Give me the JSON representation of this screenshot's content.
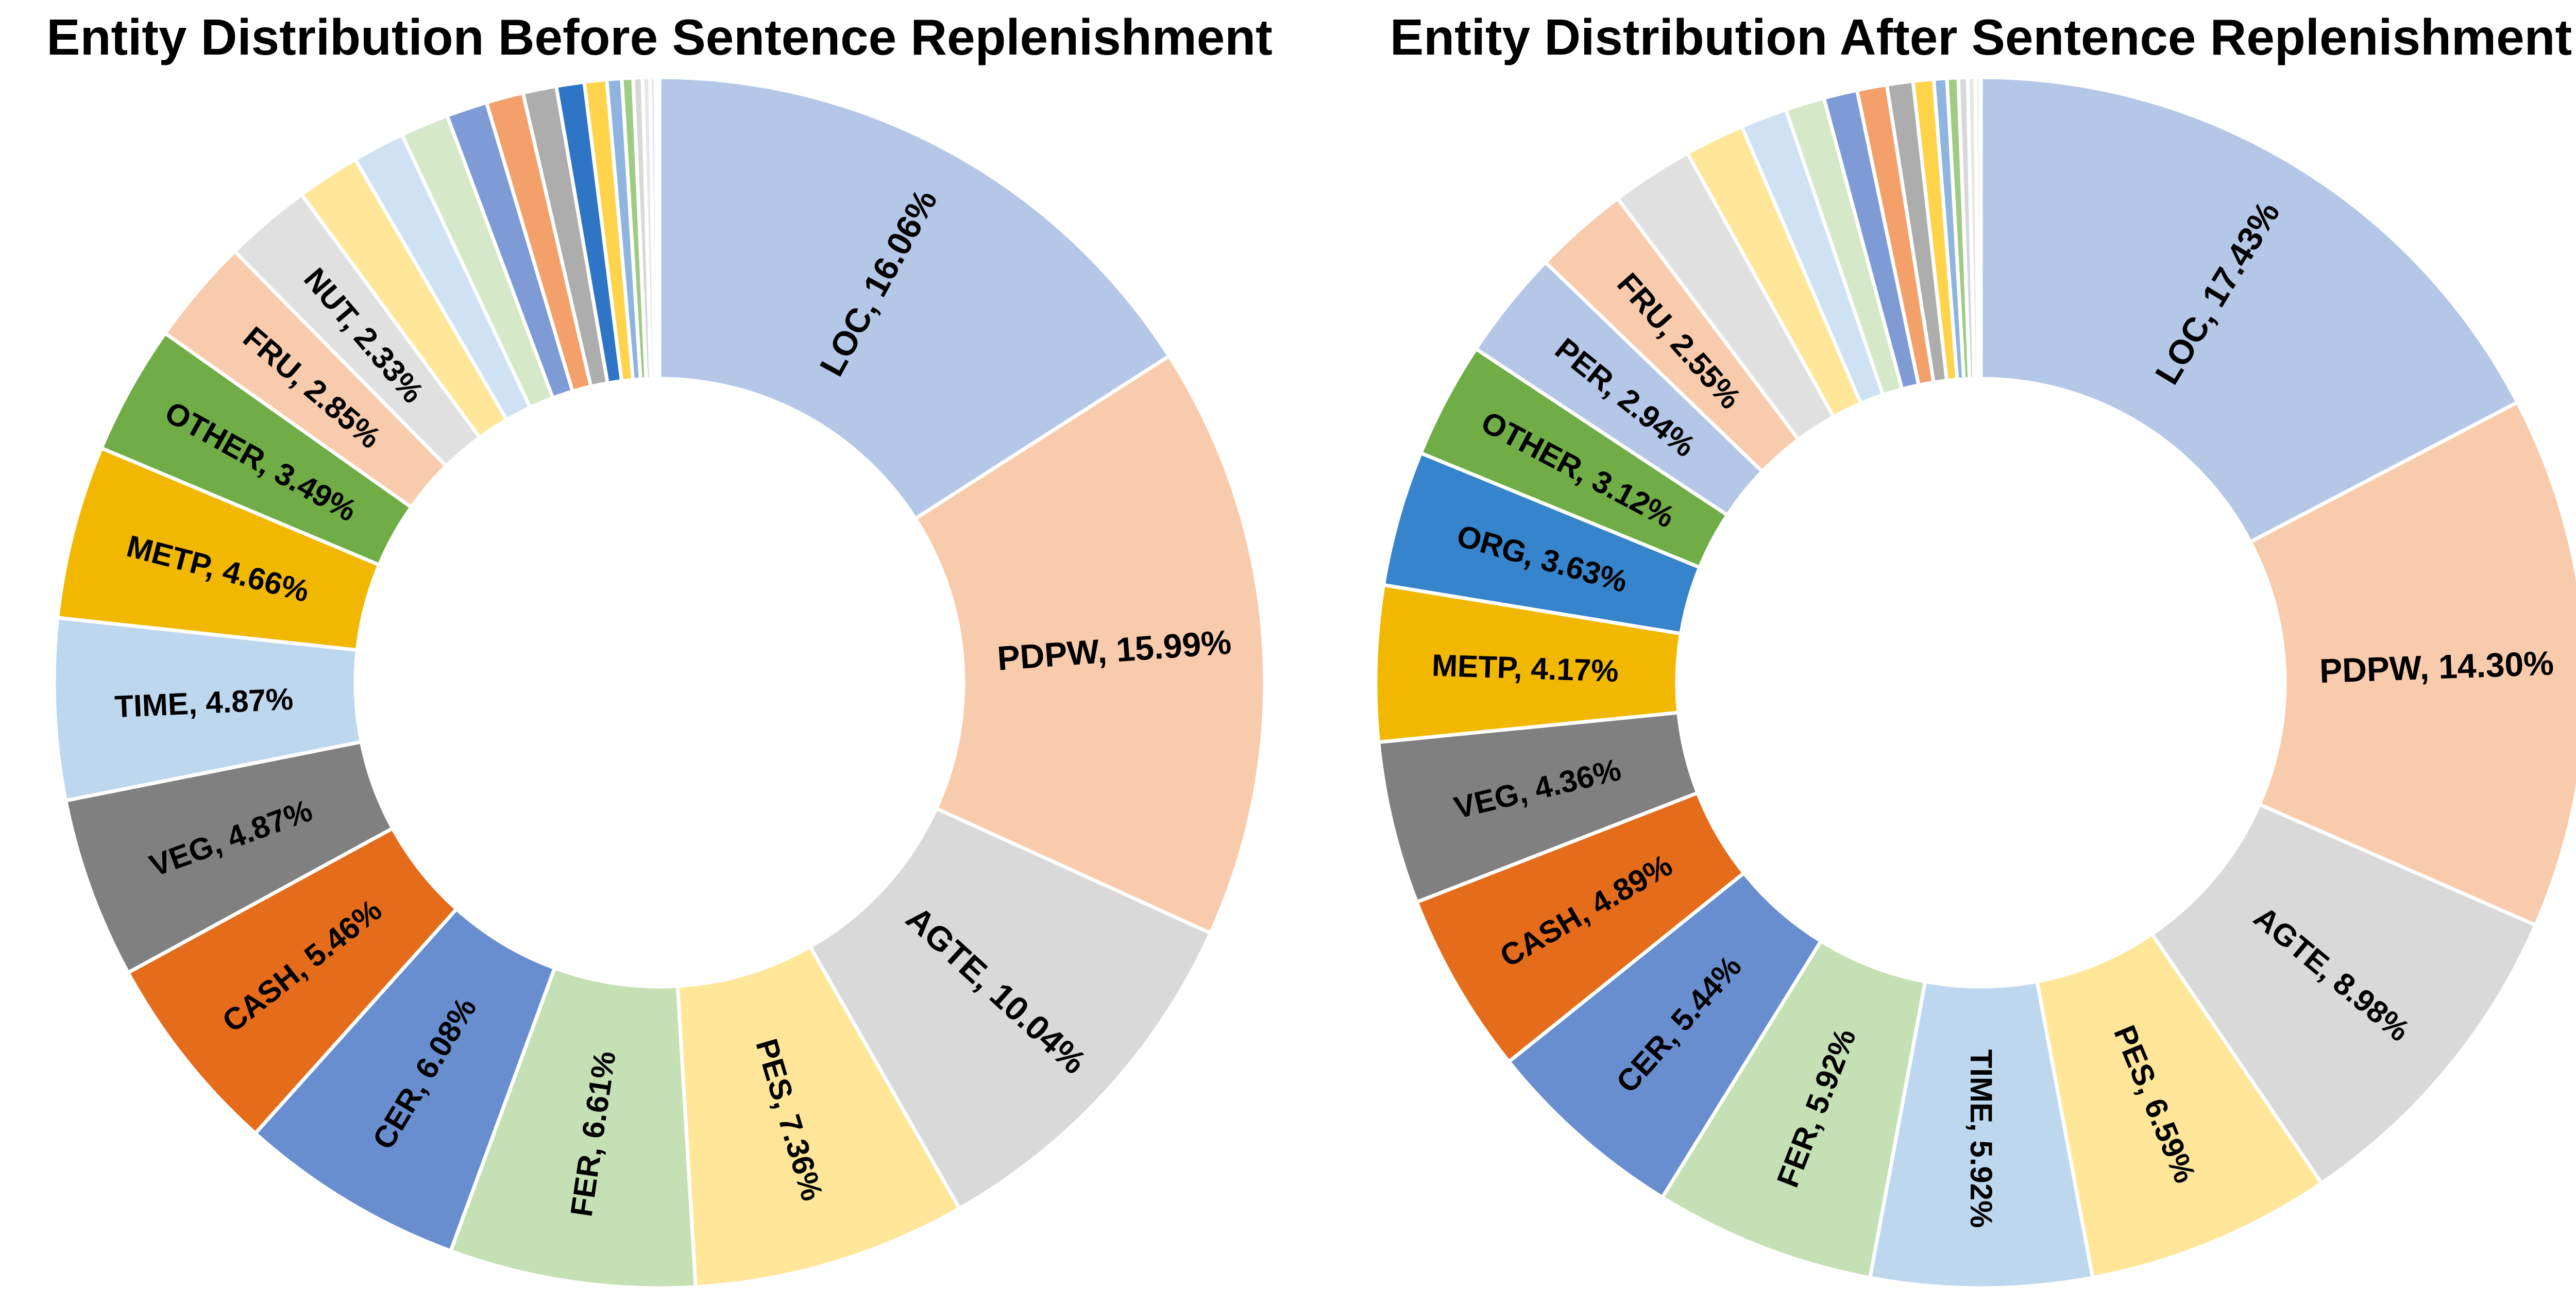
{
  "chart_data": [
    {
      "type": "pie",
      "variant": "donut",
      "title": "Entity Distribution Before Sentence Replenishment",
      "slices": [
        {
          "label": "LOC",
          "value": 16.06,
          "color": "#b4c7e7",
          "shown": true
        },
        {
          "label": "PDPW",
          "value": 15.99,
          "color": "#f8cbad",
          "shown": true
        },
        {
          "label": "AGTE",
          "value": 10.04,
          "color": "#d9d9d9",
          "shown": true
        },
        {
          "label": "PES",
          "value": 7.36,
          "color": "#ffe699",
          "shown": true
        },
        {
          "label": "FER",
          "value": 6.61,
          "color": "#c5e0b4",
          "shown": true
        },
        {
          "label": "CER",
          "value": 6.08,
          "color": "#698ed0",
          "shown": true
        },
        {
          "label": "CASH",
          "value": 5.46,
          "color": "#e46c1a",
          "shown": true
        },
        {
          "label": "VEG",
          "value": 4.87,
          "color": "#808080",
          "shown": true
        },
        {
          "label": "TIME",
          "value": 4.87,
          "color": "#bdd7ee",
          "shown": true
        },
        {
          "label": "METP",
          "value": 4.66,
          "color": "#f2b800",
          "shown": true
        },
        {
          "label": "OTHER",
          "value": 3.49,
          "color": "#70ad47",
          "shown": true
        },
        {
          "label": "FRU",
          "value": 2.85,
          "color": "#f8cbad",
          "shown": true
        },
        {
          "label": "NUT",
          "value": 2.33,
          "color": "#e0e0e0",
          "shown": true
        },
        {
          "label": "",
          "value": 1.7,
          "color": "#ffe699",
          "shown": false
        },
        {
          "label": "",
          "value": 1.4,
          "color": "#cfe2f3",
          "shown": false
        },
        {
          "label": "",
          "value": 1.3,
          "color": "#d5e8c8",
          "shown": false
        },
        {
          "label": "",
          "value": 1.1,
          "color": "#7f9bd6",
          "shown": false
        },
        {
          "label": "",
          "value": 1.0,
          "color": "#f4a06a",
          "shown": false
        },
        {
          "label": "",
          "value": 0.9,
          "color": "#adadad",
          "shown": false
        },
        {
          "label": "",
          "value": 0.75,
          "color": "#2e75c6",
          "shown": false
        },
        {
          "label": "",
          "value": 0.6,
          "color": "#ffd34a",
          "shown": false
        },
        {
          "label": "",
          "value": 0.4,
          "color": "#8fb4df",
          "shown": false
        },
        {
          "label": "",
          "value": 0.3,
          "color": "#9fcc82",
          "shown": false
        },
        {
          "label": "",
          "value": 0.25,
          "color": "#d8d8d8",
          "shown": false
        },
        {
          "label": "",
          "value": 0.2,
          "color": "#e6e6e6",
          "shown": false
        },
        {
          "label": "",
          "value": 0.15,
          "color": "#dfe7f5",
          "shown": false
        },
        {
          "label": "",
          "value": 0.1,
          "color": "#f0f0f0",
          "shown": false
        }
      ]
    },
    {
      "type": "pie",
      "variant": "donut",
      "title": "Entity Distribution After Sentence Replenishment",
      "slices": [
        {
          "label": "LOC",
          "value": 17.43,
          "color": "#b4c7e7",
          "shown": true
        },
        {
          "label": "PDPW",
          "value": 14.3,
          "color": "#f8cbad",
          "shown": true
        },
        {
          "label": "AGTE",
          "value": 8.98,
          "color": "#d9d9d9",
          "shown": true
        },
        {
          "label": "PES",
          "value": 6.59,
          "color": "#ffe699",
          "shown": true
        },
        {
          "label": "TIME",
          "value": 5.92,
          "color": "#bdd7ee",
          "shown": true
        },
        {
          "label": "FER",
          "value": 5.92,
          "color": "#c5e0b4",
          "shown": true
        },
        {
          "label": "CER",
          "value": 5.44,
          "color": "#698ed0",
          "shown": true
        },
        {
          "label": "CASH",
          "value": 4.89,
          "color": "#e46c1a",
          "shown": true
        },
        {
          "label": "VEG",
          "value": 4.36,
          "color": "#808080",
          "shown": true
        },
        {
          "label": "METP",
          "value": 4.17,
          "color": "#f2b800",
          "shown": true
        },
        {
          "label": "ORG",
          "value": 3.63,
          "color": "#3584cc",
          "shown": true
        },
        {
          "label": "OTHER",
          "value": 3.12,
          "color": "#70ad47",
          "shown": true
        },
        {
          "label": "PER",
          "value": 2.94,
          "color": "#b4c7e7",
          "shown": true
        },
        {
          "label": "FRU",
          "value": 2.55,
          "color": "#f8cbad",
          "shown": true
        },
        {
          "label": "",
          "value": 2.2,
          "color": "#e0e0e0",
          "shown": false
        },
        {
          "label": "",
          "value": 1.6,
          "color": "#ffe699",
          "shown": false
        },
        {
          "label": "",
          "value": 1.25,
          "color": "#cfe2f3",
          "shown": false
        },
        {
          "label": "",
          "value": 1.05,
          "color": "#d5e8c8",
          "shown": false
        },
        {
          "label": "",
          "value": 0.9,
          "color": "#7f9bd6",
          "shown": false
        },
        {
          "label": "",
          "value": 0.8,
          "color": "#f4a06a",
          "shown": false
        },
        {
          "label": "",
          "value": 0.7,
          "color": "#adadad",
          "shown": false
        },
        {
          "label": "",
          "value": 0.55,
          "color": "#ffd34a",
          "shown": false
        },
        {
          "label": "",
          "value": 0.35,
          "color": "#8fb4df",
          "shown": false
        },
        {
          "label": "",
          "value": 0.3,
          "color": "#9fcc82",
          "shown": false
        },
        {
          "label": "",
          "value": 0.25,
          "color": "#d8d8d8",
          "shown": false
        },
        {
          "label": "",
          "value": 0.2,
          "color": "#e6e6e6",
          "shown": false
        },
        {
          "label": "",
          "value": 0.15,
          "color": "#f0f0f0",
          "shown": false
        }
      ]
    }
  ]
}
